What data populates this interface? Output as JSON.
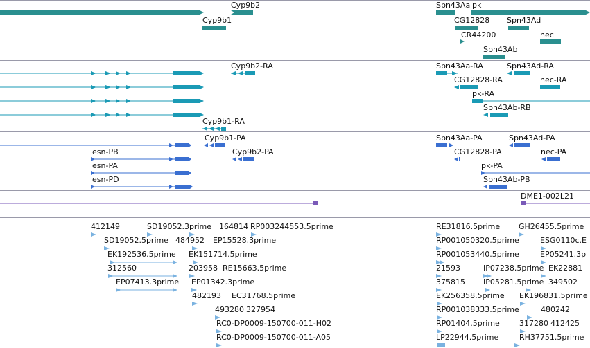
{
  "colors": {
    "gene": "#2a8f8f",
    "transcript": "#1a9ab5",
    "protein": "#3a6fd1",
    "dme": "#7a5ab8",
    "est": "#7ab2e0",
    "separator": "#9a9aaa"
  },
  "gene_track": {
    "labels": [
      "Cyp9b2",
      "Cyp9b1",
      "Spn43Aa",
      "pk",
      "CG12828",
      "Spn43Ad",
      "CR44200",
      "nec",
      "Spn43Ab"
    ]
  },
  "transcript_track": {
    "labels": [
      "Cyp9b2-RA",
      "Spn43Aa-RA",
      "Spn43Ad-RA",
      "CG12828-RA",
      "nec-RA",
      "pk-RA",
      "Spn43Ab-RB",
      "Cyp9b1-RA"
    ]
  },
  "protein_track": {
    "labels": [
      "Cyp9b1-PA",
      "Spn43Aa-PA",
      "Spn43Ad-PA",
      "esn-PB",
      "Cyp9b2-PA",
      "CG12828-PA",
      "nec-PA",
      "esn-PA",
      "pk-PA",
      "esn-PD",
      "Spn43Ab-PB"
    ]
  },
  "dme_track": {
    "labels": [
      "DME1-002L21"
    ]
  },
  "est_track": {
    "labels": [
      "412149",
      "SD19052.3prime",
      "164814",
      "RP003244553.5prime",
      "RE31816.5prime",
      "GH26455.5prime",
      "SD19052.5prime",
      "484952",
      "EP15528.3prime",
      "RP001050320.5prime",
      "ESG0110c.E",
      "EK192536.5prime",
      "EK151714.5prime",
      "RP001053440.5prime",
      "EP05241.3p",
      "312560",
      "203958",
      "RE15663.5prime",
      "21593",
      "IP07238.5prime",
      "EK22881",
      "EP07413.3prime",
      "EP01342.3prime",
      "375815",
      "IP05281.5prime",
      "349502",
      "482193",
      "EC31768.5prime",
      "EK256358.5prime",
      "EK196831.5prime",
      "493280",
      "327954",
      "RP001038333.5prime",
      "480242",
      "RC0-DP0009-150700-011-H02",
      "RP01404.5prime",
      "317280",
      "412425",
      "RC0-DP0009-150700-011-A05",
      "LP22944.5prime",
      "RH37751.5prime"
    ]
  }
}
